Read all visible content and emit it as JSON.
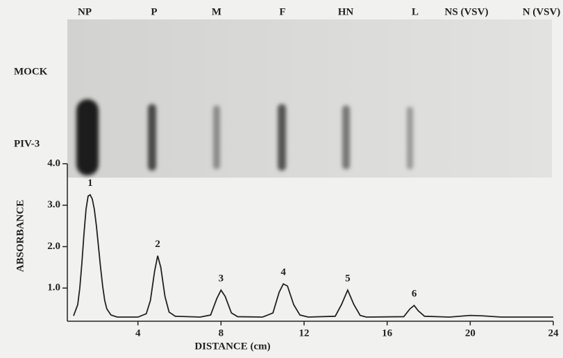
{
  "blot": {
    "lanes": [
      "NP",
      "P",
      "M",
      "F",
      "HN",
      "L",
      "NS (VSV)",
      "N (VSV)"
    ],
    "rows": [
      "MOCK",
      "PIV-3"
    ]
  },
  "chart_data": {
    "type": "line",
    "xlabel": "DISTANCE (cm)",
    "ylabel": "ABSORBANCE",
    "x": [
      0.9,
      1.1,
      1.2,
      1.3,
      1.4,
      1.5,
      1.6,
      1.7,
      1.8,
      1.9,
      2.0,
      2.1,
      2.2,
      2.3,
      2.4,
      2.5,
      2.7,
      3.0,
      4.0,
      4.4,
      4.6,
      4.8,
      4.95,
      5.1,
      5.3,
      5.5,
      5.8,
      7.0,
      7.5,
      7.8,
      8.0,
      8.2,
      8.5,
      8.8,
      10.0,
      10.5,
      10.8,
      11.0,
      11.2,
      11.5,
      11.8,
      12.2,
      13.5,
      13.8,
      14.1,
      14.4,
      14.7,
      15.0,
      16.8,
      17.1,
      17.3,
      17.5,
      17.8,
      19.0,
      20.0,
      20.6,
      21.5,
      24.0
    ],
    "series": [
      {
        "color": "#222222",
        "values": [
          0.33,
          0.6,
          1.0,
          1.6,
          2.3,
          2.9,
          3.22,
          3.25,
          3.15,
          2.9,
          2.5,
          2.0,
          1.5,
          1.05,
          0.7,
          0.5,
          0.35,
          0.3,
          0.3,
          0.38,
          0.7,
          1.4,
          1.78,
          1.5,
          0.8,
          0.42,
          0.32,
          0.3,
          0.35,
          0.75,
          0.95,
          0.8,
          0.4,
          0.31,
          0.3,
          0.4,
          0.9,
          1.1,
          1.05,
          0.6,
          0.35,
          0.3,
          0.32,
          0.6,
          0.95,
          0.6,
          0.34,
          0.3,
          0.31,
          0.5,
          0.58,
          0.45,
          0.32,
          0.3,
          0.34,
          0.33,
          0.3,
          0.3
        ]
      }
    ],
    "xlim": [
      0.6,
      24
    ],
    "xticks": [
      4,
      8,
      12,
      16,
      20,
      24
    ],
    "ylim": [
      0.2,
      4.0
    ],
    "yticks": [
      {
        "value": 1,
        "label": "1.0"
      },
      {
        "value": 2,
        "label": "2.0"
      },
      {
        "value": 3,
        "label": "3.0"
      },
      {
        "value": 4,
        "label": "4.0"
      }
    ],
    "annotations": [
      {
        "text": "1",
        "x": 1.7
      },
      {
        "text": "2",
        "x": 4.95
      },
      {
        "text": "3",
        "x": 8.0
      },
      {
        "text": "4",
        "x": 11.0
      },
      {
        "text": "5",
        "x": 14.1
      },
      {
        "text": "6",
        "x": 17.3
      }
    ]
  }
}
